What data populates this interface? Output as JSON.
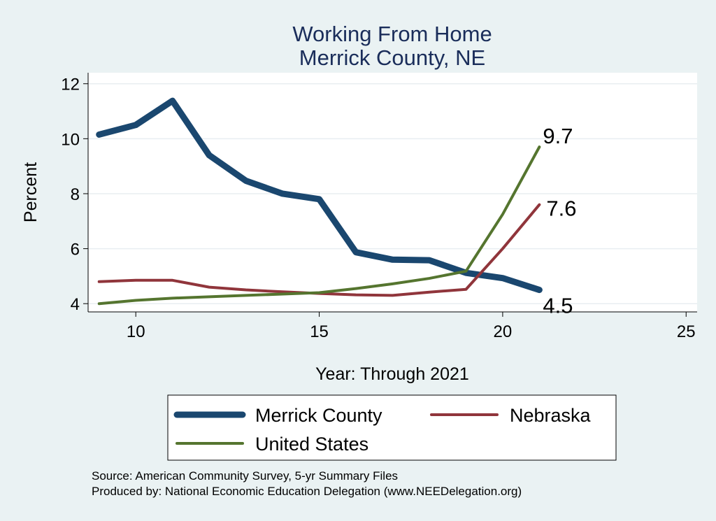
{
  "chart_data": {
    "type": "line",
    "title": "Working From Home",
    "subtitle": "Merrick County, NE",
    "xlabel": "Year: Through 2021",
    "ylabel": "Percent",
    "xlim": [
      8.7,
      25.3
    ],
    "ylim": [
      3.7,
      12.4
    ],
    "xticks": [
      10,
      15,
      20,
      25
    ],
    "yticks": [
      4,
      6,
      8,
      10,
      12
    ],
    "grid": true,
    "legend_position": "bottom",
    "x": [
      9,
      10,
      11,
      12,
      13,
      14,
      15,
      16,
      17,
      18,
      19,
      20,
      21
    ],
    "series": [
      {
        "name": "Merrick County",
        "color": "#1a476f",
        "width": 9,
        "values": [
          10.15,
          10.5,
          11.38,
          9.4,
          8.47,
          8.0,
          7.8,
          5.87,
          5.6,
          5.58,
          5.12,
          4.93,
          4.5
        ],
        "end_label": "4.5"
      },
      {
        "name": "Nebraska",
        "color": "#90353b",
        "width": 4,
        "values": [
          4.8,
          4.85,
          4.85,
          4.6,
          4.5,
          4.43,
          4.37,
          4.32,
          4.3,
          4.42,
          4.52,
          6.0,
          7.6
        ],
        "end_label": "7.6"
      },
      {
        "name": "United States",
        "color": "#55752f",
        "width": 4,
        "values": [
          4.0,
          4.12,
          4.2,
          4.25,
          4.3,
          4.35,
          4.4,
          4.55,
          4.72,
          4.92,
          5.18,
          7.25,
          9.7
        ],
        "end_label": "9.7"
      }
    ],
    "notes": [
      "Source: American Community Survey, 5-yr Summary Files",
      "Produced by: National Economic Education Delegation (www.NEEDelegation.org)"
    ]
  }
}
